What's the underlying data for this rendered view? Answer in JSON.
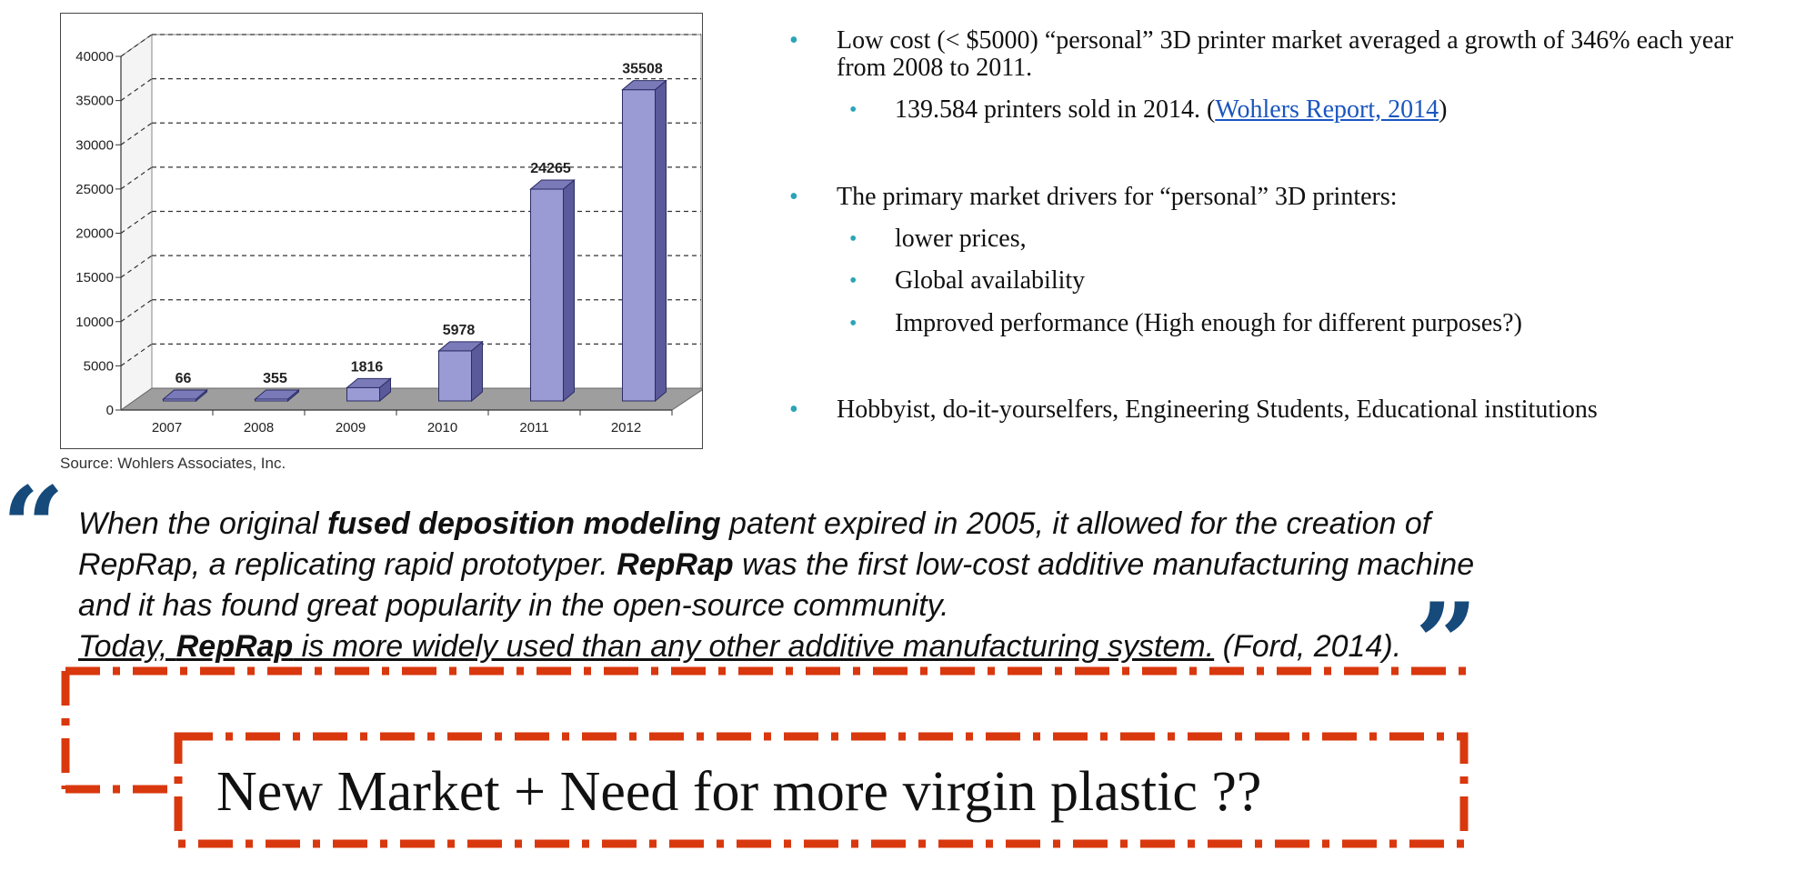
{
  "chart_data": {
    "type": "bar",
    "categories": [
      "2007",
      "2008",
      "2009",
      "2010",
      "2011",
      "2012"
    ],
    "values": [
      66,
      355,
      1816,
      5978,
      24265,
      35508
    ],
    "data_labels": [
      "66",
      "355",
      "1816",
      "5978",
      "24265",
      "35508"
    ],
    "yticks": [
      "0",
      "5000",
      "10000",
      "15000",
      "20000",
      "25000",
      "30000",
      "35000",
      "40000"
    ],
    "ylim": [
      0,
      40000
    ],
    "grid": true,
    "colors": {
      "bar_front": "#9a9ad4",
      "bar_side": "#5a5a9a",
      "bar_top": "#7a7ab8",
      "floor": "#9e9e9e"
    }
  },
  "chart_source": "Source: Wohlers Associates, Inc.",
  "bullets": {
    "b1": "Low cost (< $5000) “personal” 3D printer market averaged a growth of 346% each year from 2008 to 2011.",
    "b1_sub_prefix": "139.584 printers sold in 2014. (",
    "b1_sub_link": "Wohlers Report, 2014",
    "b1_sub_suffix": ")",
    "b2": "The  primary market drivers for “personal” 3D printers:",
    "b2_items": [
      "lower prices,",
      "Global availability",
      "Improved performance  (High enough for different purposes?)"
    ],
    "b3": " Hobbyist, do-it-yourselfers, Engineering Students, Educational institutions"
  },
  "quote": {
    "l1a": "When the original ",
    "l1b": "fused deposition modeling",
    "l1c": " patent expired in 2005, it allowed for the creation of",
    "l2a": "RepRap, a replicating rapid prototyper.  ",
    "l2b": "RepRap",
    "l2c": " was the first low-cost additive manufacturing machine",
    "l3": "and it has found great popularity in the open-source community.",
    "l4a": "Today, ",
    "l4b": "RepRap",
    "l4c": " is more widely used than any other additive manufacturing system.",
    "l4d": " (Ford, 2014)."
  },
  "quote_marks": {
    "open": "“",
    "close": "”",
    "color": "#154a7a"
  },
  "headline": "New Market + Need for more virgin plastic ??",
  "accent_color": "#d9380e"
}
